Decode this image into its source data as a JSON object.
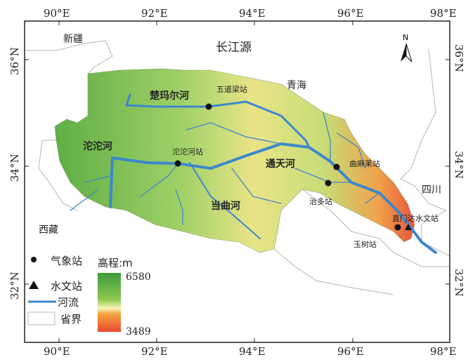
{
  "axes": {
    "lon_ticks": [
      "90°E",
      "92°E",
      "94°E",
      "96°E",
      "98°E"
    ],
    "lat_ticks": [
      "36°N",
      "34°N",
      "32°N"
    ]
  },
  "title": "长江源",
  "north_arrow": "N",
  "regions": {
    "xinjiang": "新疆",
    "qinghai": "青海",
    "xizang": "西藏",
    "sichuan": "四川"
  },
  "rivers": {
    "chumaer": "楚玛尔河",
    "tuotuo": "沱沱河",
    "tongtian": "通天河",
    "dangqu": "当曲河"
  },
  "stations": {
    "wudaoliang": "五道梁站",
    "tuotuohe": "沱沱河站",
    "qumalai": "曲麻莱站",
    "zhiduo": "治多站",
    "yushu": "玉树站",
    "zhimenda": "直门达水文站"
  },
  "legend": {
    "met_station": "气象站",
    "hydro_station": "水文站",
    "river": "河流",
    "province": "省界",
    "elevation_title": "高程:m",
    "elev_max": "6580",
    "elev_min": "3489"
  },
  "colors": {
    "river": "#3d87cc",
    "high": "#3f9a3c",
    "mid": "#f3f08a",
    "low": "#e84a32"
  }
}
